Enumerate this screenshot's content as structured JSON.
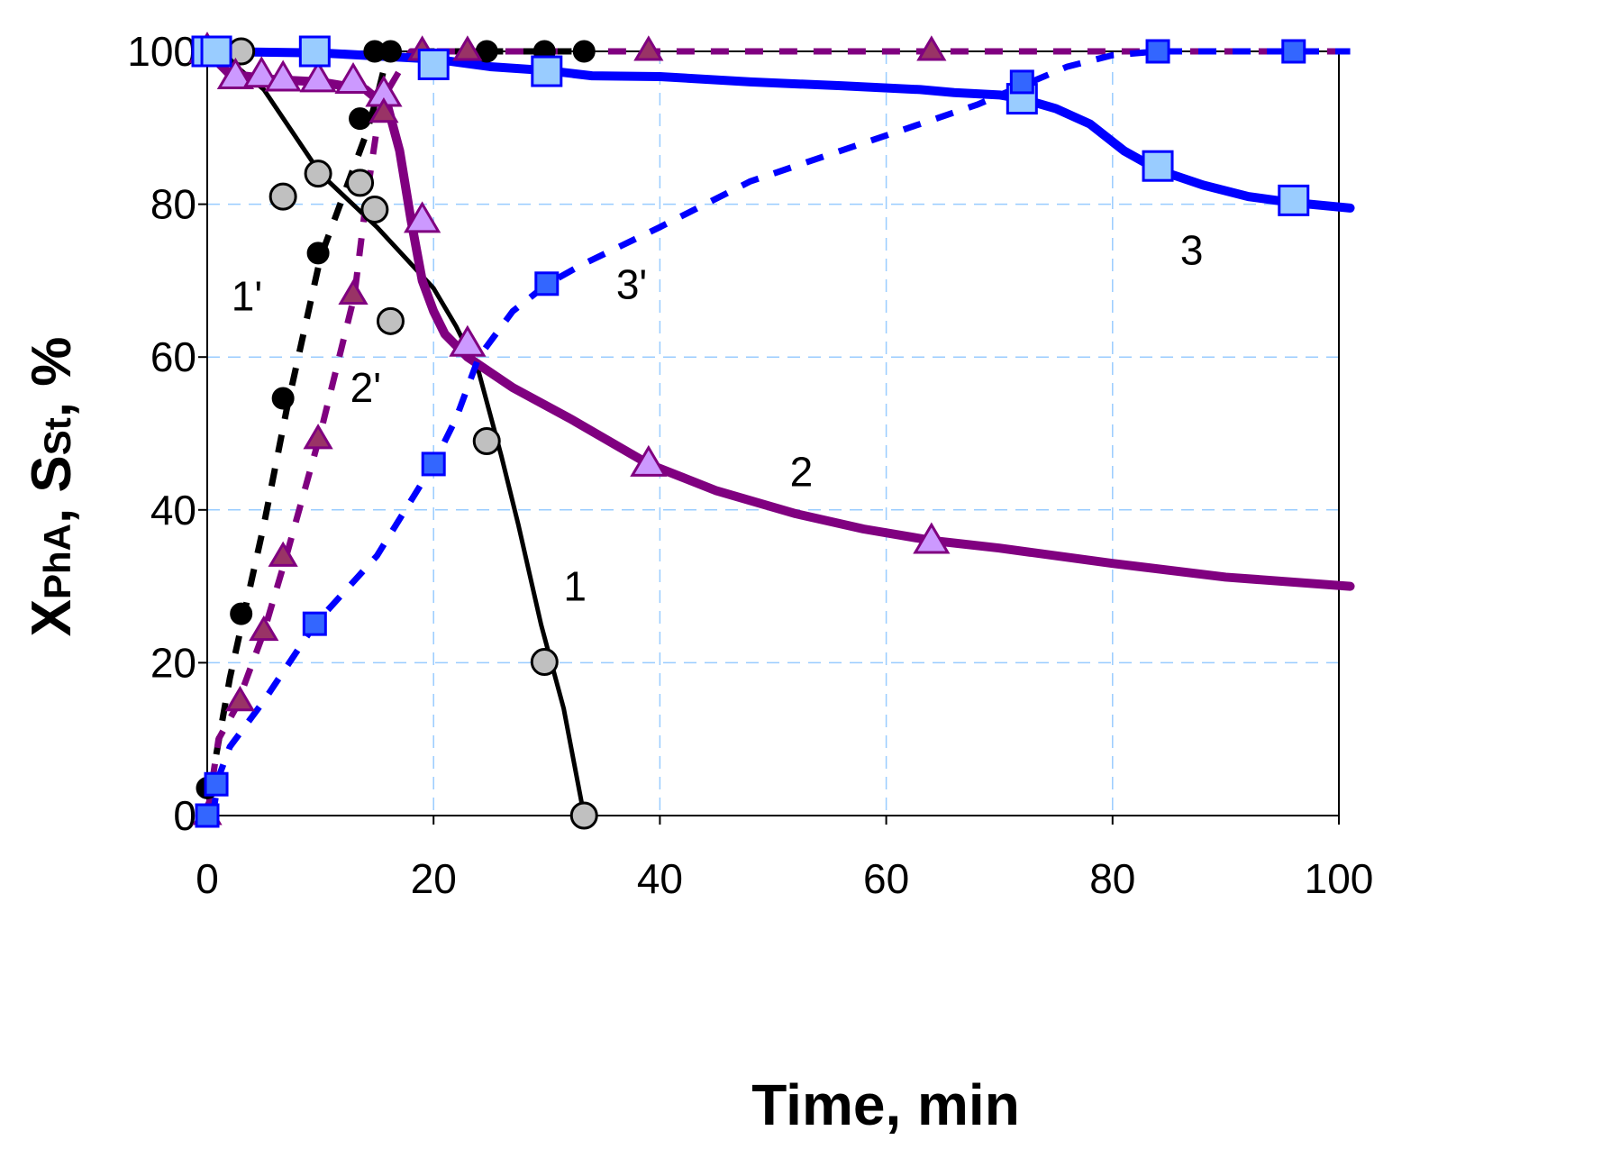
{
  "chart_data": {
    "type": "line",
    "title": "",
    "xlabel": "Time, min",
    "ylabel": {
      "base1": "X",
      "sub1": "PhA",
      "sep": ", ",
      "base2": "S",
      "sub2": "St",
      "tail": ", %"
    },
    "xlim": [
      0,
      100
    ],
    "ylim": [
      0,
      100
    ],
    "xticks": [
      0,
      20,
      40,
      60,
      80,
      100
    ],
    "yticks": [
      0,
      20,
      40,
      60,
      80,
      100
    ],
    "grid": true,
    "legend": "none",
    "colors": {
      "black": "#000000",
      "purple": "#800080",
      "blue": "#0000ff",
      "grey_fill": "#c0c0c0",
      "violet_fill": "#cc99ff",
      "dark_triangle_fill": "#993366",
      "blue_square_fill": "#3366ff",
      "light_square_fill": "#99ccff",
      "grid": "#99ccff"
    },
    "series": [
      {
        "name": "1",
        "label": "1",
        "label_at": [
          32.5,
          30
        ],
        "style": "solid",
        "color": "#000000",
        "width": 5,
        "marker": "circle",
        "marker_fill": "#c0c0c0",
        "marker_stroke": "#000000",
        "marker_r": 14,
        "line": [
          [
            1,
            100
          ],
          [
            5,
            95
          ],
          [
            10,
            84
          ],
          [
            15,
            77
          ],
          [
            20,
            69
          ],
          [
            22,
            64
          ],
          [
            24,
            58
          ],
          [
            26,
            47
          ],
          [
            27.5,
            38
          ],
          [
            29.5,
            25
          ],
          [
            31.5,
            14
          ],
          [
            33.3,
            0
          ]
        ],
        "points": [
          [
            0,
            100
          ],
          [
            3,
            100
          ],
          [
            6.7,
            81
          ],
          [
            9.8,
            84
          ],
          [
            13.5,
            82.8
          ],
          [
            14.8,
            79.3
          ],
          [
            16.2,
            64.7
          ],
          [
            24.7,
            49
          ],
          [
            29.8,
            20.1
          ],
          [
            33.3,
            0
          ]
        ]
      },
      {
        "name": "1'",
        "label": "1'",
        "label_at": [
          3.5,
          68
        ],
        "style": "dashed",
        "color": "#000000",
        "width": 7,
        "marker": "circle",
        "marker_fill": "#000000",
        "marker_stroke": "#000000",
        "marker_r": 11,
        "line": [
          [
            0.8,
            8
          ],
          [
            2,
            18
          ],
          [
            3.5,
            28
          ],
          [
            5,
            38
          ],
          [
            7,
            53
          ],
          [
            10,
            73
          ],
          [
            12,
            81
          ],
          [
            14,
            89
          ],
          [
            15,
            94
          ],
          [
            16,
            100
          ],
          [
            33.3,
            100
          ]
        ],
        "points": [
          [
            0,
            3.6
          ],
          [
            3,
            26.4
          ],
          [
            6.7,
            54.6
          ],
          [
            9.8,
            73.6
          ],
          [
            13.5,
            91.2
          ],
          [
            14.8,
            100
          ],
          [
            16.2,
            100
          ],
          [
            24.7,
            100
          ],
          [
            29.8,
            100
          ],
          [
            33.3,
            100
          ]
        ]
      },
      {
        "name": "2",
        "label": "2",
        "label_at": [
          52.5,
          45
        ],
        "style": "solid",
        "color": "#800080",
        "width": 10,
        "marker": "triangle",
        "marker_fill": "#cc99ff",
        "marker_stroke": "#800080",
        "marker_r": 18,
        "line": [
          [
            0,
            100
          ],
          [
            2,
            97
          ],
          [
            6,
            96.3
          ],
          [
            10,
            96
          ],
          [
            14,
            95
          ],
          [
            16,
            92.5
          ],
          [
            17,
            87
          ],
          [
            18,
            78
          ],
          [
            19,
            70
          ],
          [
            20,
            66
          ],
          [
            21,
            63
          ],
          [
            23,
            60
          ],
          [
            27,
            56
          ],
          [
            32,
            52
          ],
          [
            39,
            46
          ],
          [
            45,
            42.5
          ],
          [
            52,
            39.5
          ],
          [
            58,
            37.5
          ],
          [
            64,
            36
          ],
          [
            70,
            35
          ],
          [
            80,
            33
          ],
          [
            90,
            31.2
          ],
          [
            101,
            30
          ]
        ],
        "points": [
          [
            0,
            100
          ],
          [
            2.5,
            96.6
          ],
          [
            4.8,
            96.8
          ],
          [
            6.7,
            96.3
          ],
          [
            9.8,
            96.2
          ],
          [
            12.9,
            96
          ],
          [
            15.6,
            94.3
          ],
          [
            19,
            77.8
          ],
          [
            23,
            61.6
          ],
          [
            39,
            45.9
          ],
          [
            64,
            35.8
          ]
        ]
      },
      {
        "name": "2'",
        "label": "2'",
        "label_at": [
          14,
          56
        ],
        "style": "dashed",
        "color": "#800080",
        "width": 7,
        "marker": "triangle",
        "marker_fill": "#993366",
        "marker_stroke": "#800080",
        "marker_r": 14,
        "line": [
          [
            0,
            0
          ],
          [
            1,
            10
          ],
          [
            2.5,
            14
          ],
          [
            5,
            24
          ],
          [
            7,
            34
          ],
          [
            10,
            50
          ],
          [
            13,
            68
          ],
          [
            14,
            80
          ],
          [
            15,
            90
          ],
          [
            16,
            95
          ],
          [
            18,
            100
          ],
          [
            101,
            100
          ]
        ],
        "points": [
          [
            0,
            0
          ],
          [
            2.9,
            14.9
          ],
          [
            5,
            24.1
          ],
          [
            6.7,
            33.8
          ],
          [
            9.8,
            49.2
          ],
          [
            12.9,
            68.1
          ],
          [
            15.6,
            91.9
          ],
          [
            19,
            100
          ],
          [
            23,
            100
          ],
          [
            39,
            100
          ],
          [
            64,
            100
          ]
        ]
      },
      {
        "name": "3",
        "label": "3",
        "label_at": [
          87,
          74
        ],
        "style": "solid",
        "color": "#0000ff",
        "width": 10,
        "marker": "square",
        "marker_fill": "#99ccff",
        "marker_stroke": "#0000ff",
        "marker_r": 16,
        "line": [
          [
            0,
            100
          ],
          [
            10,
            99.8
          ],
          [
            20,
            99
          ],
          [
            25,
            98
          ],
          [
            30,
            97.5
          ],
          [
            34,
            96.8
          ],
          [
            40,
            96.7
          ],
          [
            48,
            96
          ],
          [
            56,
            95.5
          ],
          [
            63,
            95
          ],
          [
            66,
            94.6
          ],
          [
            70,
            94.3
          ],
          [
            72,
            93.8
          ],
          [
            75,
            92.5
          ],
          [
            78,
            90.5
          ],
          [
            81,
            87
          ],
          [
            84,
            84.5
          ],
          [
            88,
            82.5
          ],
          [
            92,
            81
          ],
          [
            96,
            80.2
          ],
          [
            101,
            79.5
          ]
        ],
        "points": [
          [
            0,
            100
          ],
          [
            0.8,
            100
          ],
          [
            9.5,
            100
          ],
          [
            20,
            98.3
          ],
          [
            30,
            97.4
          ],
          [
            72,
            93.8
          ],
          [
            84,
            85
          ],
          [
            96,
            80.5
          ]
        ]
      },
      {
        "name": "3'",
        "label": "3'",
        "label_at": [
          37.5,
          69.5
        ],
        "style": "dashed",
        "color": "#0000ff",
        "width": 7,
        "marker": "square",
        "marker_fill": "#3366ff",
        "marker_stroke": "#0000ff",
        "marker_r": 12,
        "line": [
          [
            0.5,
            0
          ],
          [
            1,
            5
          ],
          [
            2,
            9
          ],
          [
            5,
            15
          ],
          [
            9.5,
            25
          ],
          [
            15,
            34
          ],
          [
            20,
            46
          ],
          [
            22,
            52
          ],
          [
            24,
            60
          ],
          [
            27,
            66
          ],
          [
            30,
            69.5
          ],
          [
            33,
            72
          ],
          [
            40,
            77
          ],
          [
            48,
            83
          ],
          [
            55,
            86.5
          ],
          [
            62,
            90
          ],
          [
            68,
            93
          ],
          [
            72,
            95.5
          ],
          [
            76,
            98
          ],
          [
            80,
            99.5
          ],
          [
            84,
            100
          ],
          [
            101,
            100
          ]
        ],
        "points": [
          [
            0,
            0
          ],
          [
            0.8,
            4.1
          ],
          [
            9.5,
            25.1
          ],
          [
            20,
            46
          ],
          [
            30,
            69.6
          ],
          [
            72,
            96
          ],
          [
            84,
            100
          ],
          [
            96,
            100
          ]
        ]
      }
    ]
  }
}
